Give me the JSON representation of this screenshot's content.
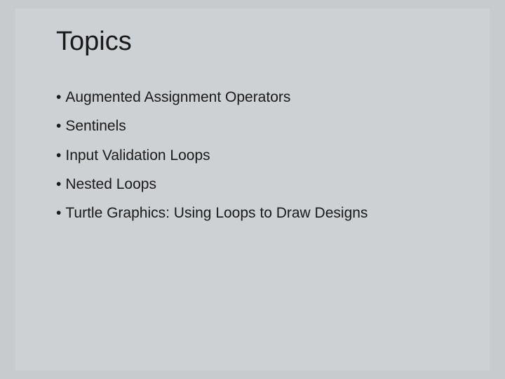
{
  "slide": {
    "title": "Topics",
    "title_fontsize": 38,
    "title_color": "#1a1a1a",
    "background_outer": "#c7cbce",
    "background_inner": "#cdd1d4",
    "bullets": [
      "Augmented Assignment Operators",
      "Sentinels",
      "Input Validation Loops",
      "Nested Loops",
      "Turtle Graphics: Using Loops to Draw Designs"
    ],
    "bullet_fontsize": 21,
    "bullet_color": "#1a1a1a",
    "bullet_symbol": "•"
  }
}
